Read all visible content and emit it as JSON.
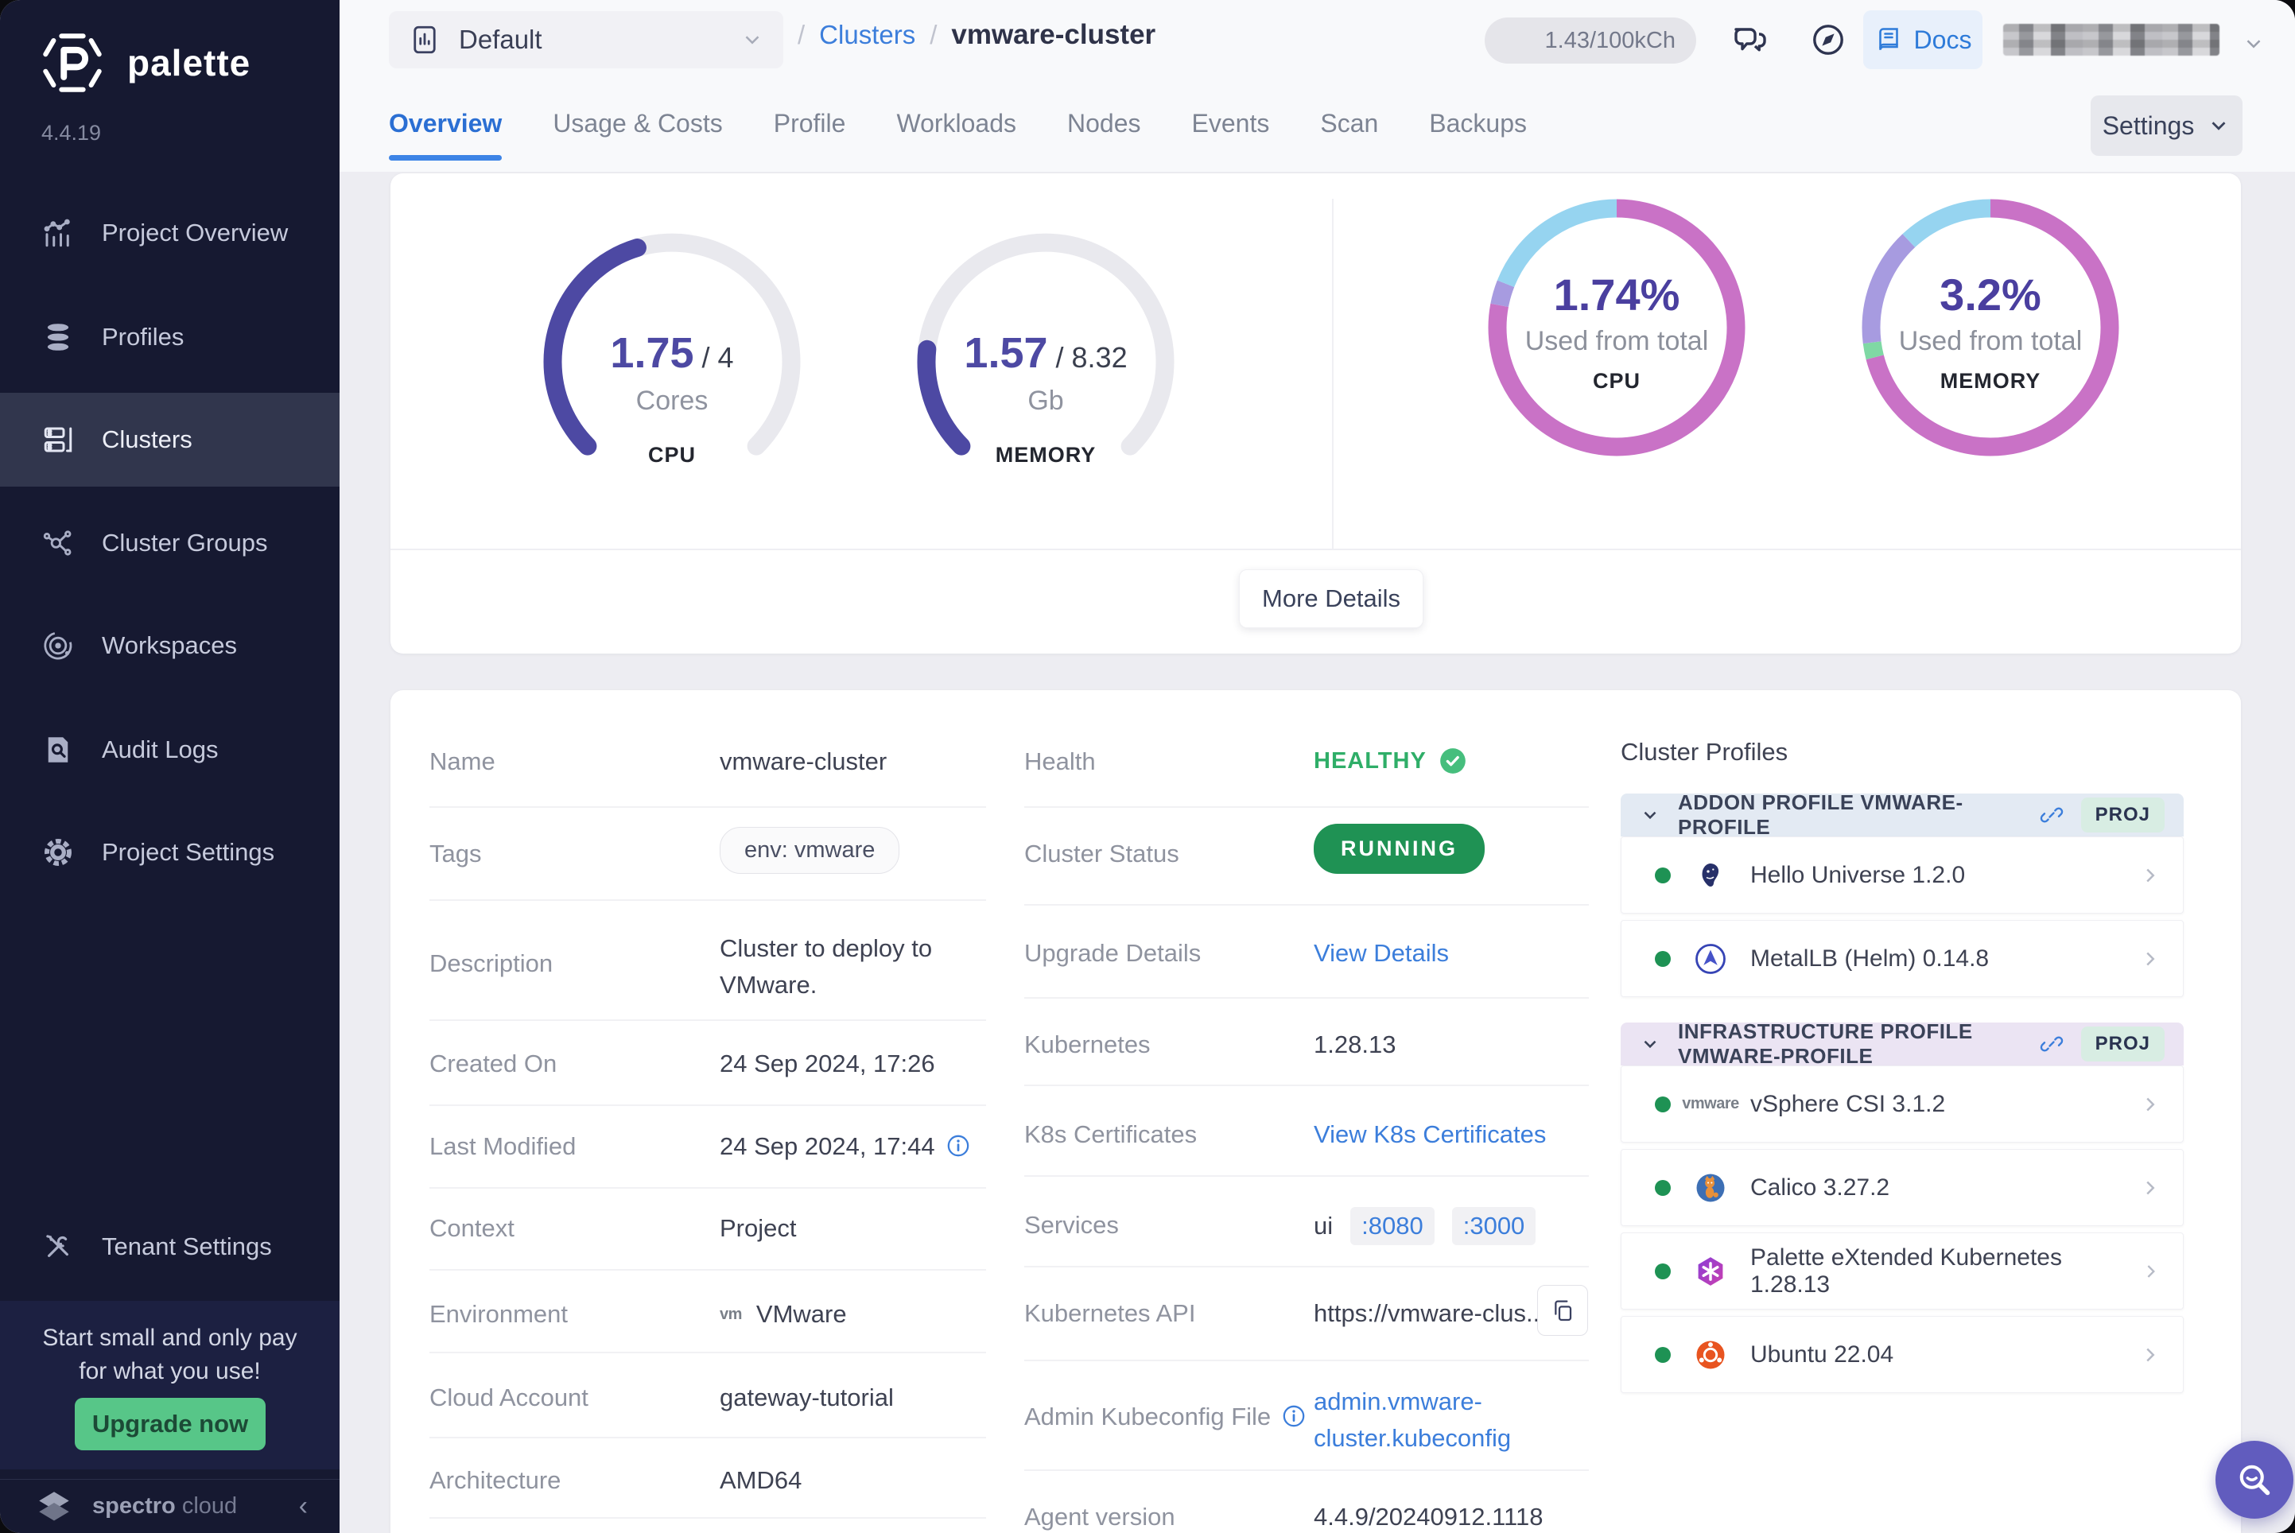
{
  "sidebar": {
    "brand": "palette",
    "version": "4.4.19",
    "items": [
      {
        "label": "Project Overview",
        "icon": "bar-chart"
      },
      {
        "label": "Profiles",
        "icon": "layers"
      },
      {
        "label": "Clusters",
        "icon": "server",
        "active": true
      },
      {
        "label": "Cluster Groups",
        "icon": "nodes"
      },
      {
        "label": "Workspaces",
        "icon": "orbit"
      },
      {
        "label": "Audit Logs",
        "icon": "doc-search"
      },
      {
        "label": "Project Settings",
        "icon": "gear"
      },
      {
        "label": "Tenant Settings",
        "icon": "tools"
      }
    ],
    "promo": {
      "line1": "Start small and only pay",
      "line2": "for what you use!",
      "button_label": "Upgrade now",
      "button_color": "#57C688"
    },
    "footer": {
      "brand_strong": "spectro",
      "brand_light": "cloud"
    }
  },
  "header": {
    "project_selector": {
      "value": "Default"
    },
    "breadcrumb": {
      "slash1": "/",
      "parent": "Clusters",
      "slash2": "/",
      "current": "vmware-cluster"
    },
    "credits_badge": "1.43/100kCh",
    "docs_label": "Docs"
  },
  "tabs": {
    "items": [
      "Overview",
      "Usage & Costs",
      "Profile",
      "Workloads",
      "Nodes",
      "Events",
      "Scan",
      "Backups"
    ],
    "active": "Overview",
    "settings_label": "Settings"
  },
  "usage": {
    "cpu_gauge": {
      "used": "1.75",
      "total_suffix": " / 4",
      "unit": "Cores",
      "label": "CPU",
      "fraction": 0.4375,
      "color": "#4D49A3",
      "track": "#E9E9EE"
    },
    "memory_gauge": {
      "used": "1.57",
      "total_suffix": " / 8.32",
      "unit": "Gb",
      "label": "MEMORY",
      "fraction": 0.189,
      "color": "#4D49A3",
      "track": "#E9E9EE"
    },
    "cpu_donut": {
      "percent": "1.74%",
      "caption": "Used from total",
      "label": "CPU",
      "segments": [
        {
          "color": "#C972C6",
          "fraction": 0.78
        },
        {
          "color": "#A79BE0",
          "fraction": 0.03
        },
        {
          "color": "#96D4F0",
          "fraction": 0.19
        }
      ]
    },
    "memory_donut": {
      "percent": "3.2%",
      "caption": "Used from total",
      "label": "MEMORY",
      "segments": [
        {
          "color": "#C972C6",
          "fraction": 0.71
        },
        {
          "color": "#7FD8A4",
          "fraction": 0.02
        },
        {
          "color": "#A79BE0",
          "fraction": 0.15
        },
        {
          "color": "#96D4F0",
          "fraction": 0.12
        }
      ]
    },
    "more_details_label": "More Details"
  },
  "details": {
    "left": {
      "rows": [
        {
          "label": "Name",
          "value": "vmware-cluster"
        },
        {
          "label": "Tags",
          "value": "env: vmware"
        },
        {
          "label": "Description",
          "value": "Cluster to deploy to VMware."
        },
        {
          "label": "Created On",
          "value": "24 Sep 2024, 17:26"
        },
        {
          "label": "Last Modified",
          "value": "24 Sep 2024, 17:44"
        },
        {
          "label": "Context",
          "value": "Project"
        },
        {
          "label": "Environment",
          "value": "VMware",
          "logo": "vm"
        },
        {
          "label": "Cloud Account",
          "value": "gateway-tutorial"
        },
        {
          "label": "Architecture",
          "value": "AMD64"
        }
      ]
    },
    "middle": {
      "rows": [
        {
          "label": "Health",
          "value": "HEALTHY"
        },
        {
          "label": "Cluster Status",
          "value": "RUNNING"
        },
        {
          "label": "Upgrade Details",
          "value": "View Details"
        },
        {
          "label": "Kubernetes",
          "value": "1.28.13"
        },
        {
          "label": "K8s Certificates",
          "value": "View K8s Certificates"
        },
        {
          "label": "Services",
          "value": "ui",
          "ports": [
            ":8080",
            ":3000"
          ]
        },
        {
          "label": "Kubernetes API",
          "value": "https://vmware-clus..."
        },
        {
          "label": "Admin Kubeconfig File",
          "value": "admin.vmware-cluster.kubeconfig"
        },
        {
          "label": "Agent version",
          "value": "4.4.9/20240912.1118"
        }
      ]
    }
  },
  "cluster_profiles": {
    "title": "Cluster Profiles",
    "sections": [
      {
        "name": "ADDON PROFILE VMWARE-PROFILE",
        "badge": "PROJ",
        "theme": "blue",
        "items": [
          {
            "name": "Hello Universe 1.2.0",
            "icon": "hello-universe",
            "status_color": "#1E9254"
          },
          {
            "name": "MetalLB (Helm) 0.14.8",
            "icon": "metallb",
            "status_color": "#1E9254"
          }
        ]
      },
      {
        "name": "INFRASTRUCTURE PROFILE VMWARE-PROFILE",
        "badge": "PROJ",
        "theme": "purple",
        "items": [
          {
            "name": "vSphere CSI 3.1.2",
            "icon": "vmware",
            "status_color": "#1E9254"
          },
          {
            "name": "Calico 3.27.2",
            "icon": "calico",
            "status_color": "#1E9254"
          },
          {
            "name": "Palette eXtended Kubernetes 1.28.13",
            "icon": "pxk",
            "status_color": "#1E9254"
          },
          {
            "name": "Ubuntu 22.04",
            "icon": "ubuntu",
            "status_color": "#1E9254"
          }
        ]
      }
    ]
  },
  "colors": {
    "accent_blue": "#3C7EDB",
    "sidebar_bg": "#161931",
    "selected_nav": "#31364D",
    "green_status": "#1E9254",
    "healthy_green": "#2FAE68",
    "gauge_indigo": "#4D49A3",
    "donut_pink": "#C972C6",
    "donut_cyan": "#96D4F0",
    "donut_purple": "#A79BE0",
    "donut_green": "#7FD8A4",
    "fab_purple": "#615CBE",
    "upgrade_green": "#57C688"
  }
}
